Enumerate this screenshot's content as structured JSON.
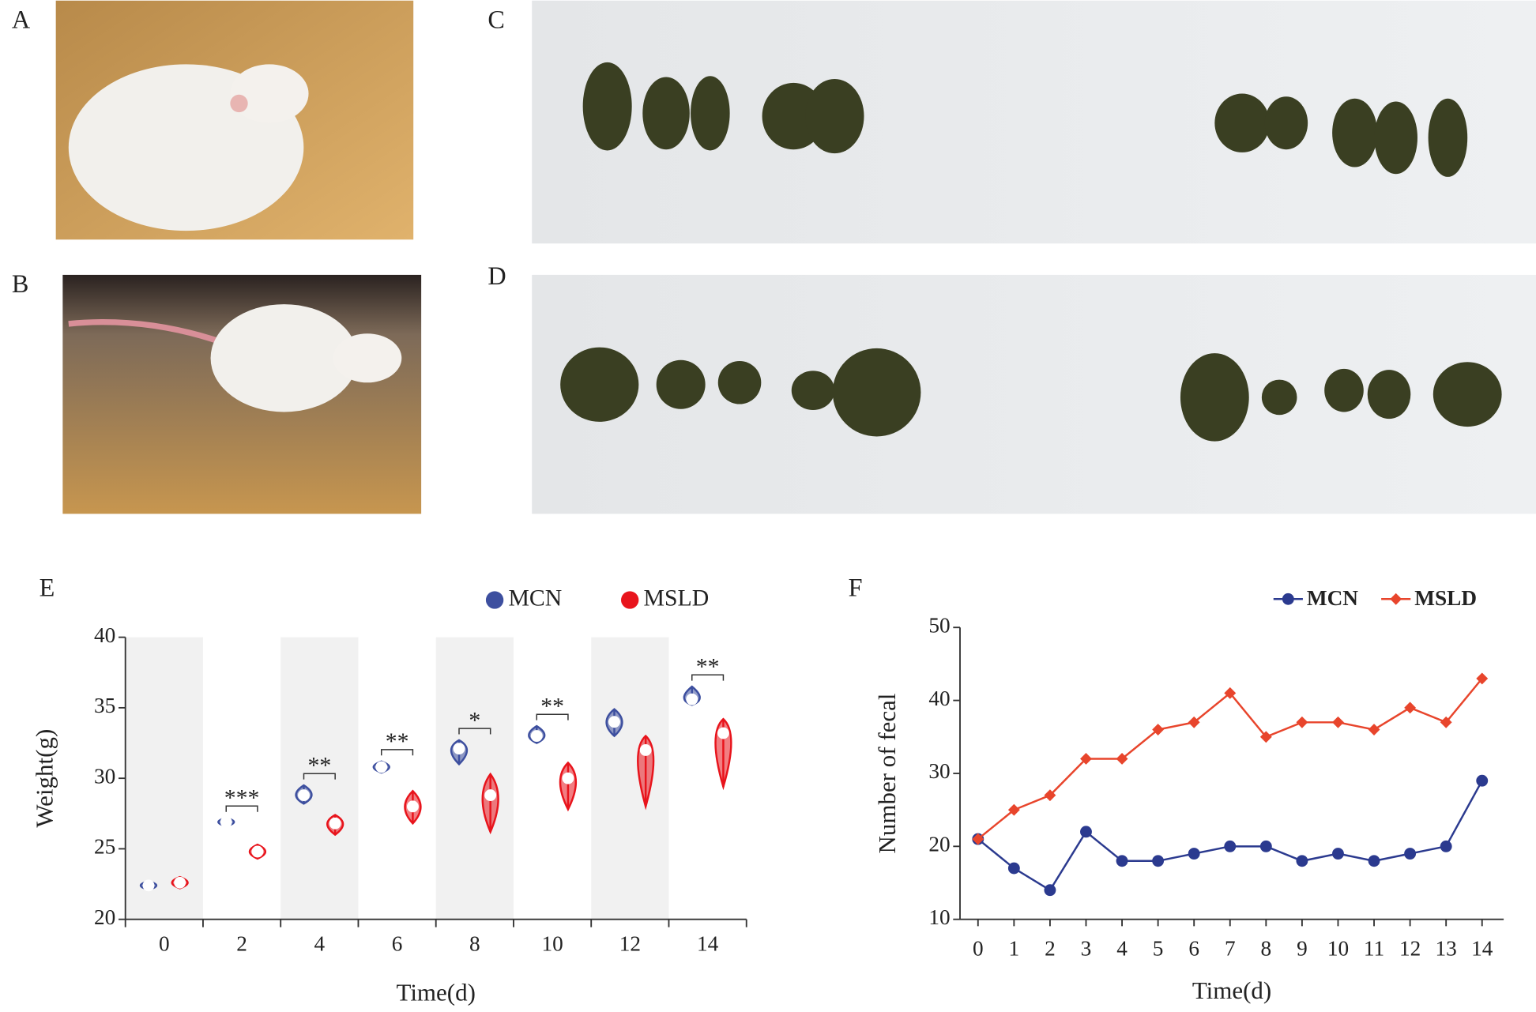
{
  "panel_labels": [
    "A",
    "B",
    "C",
    "D"
  ],
  "chart_data": [
    {
      "type": "violin",
      "panel": "E",
      "y_label": "Weight(g)",
      "x_label": "Time(d)",
      "categories": [
        "0",
        "2",
        "4",
        "6",
        "8",
        "10",
        "12",
        "14"
      ],
      "series": [
        {
          "name": "MCN",
          "color": "#3d4f9f",
          "values": [
            22.4,
            26.9,
            28.8,
            30.8,
            32.1,
            33.0,
            34.0,
            35.6
          ],
          "min": [
            22.1,
            26.6,
            28.2,
            30.4,
            31.0,
            32.5,
            33.0,
            35.2
          ],
          "max": [
            22.7,
            27.2,
            29.5,
            31.2,
            32.7,
            33.7,
            34.9,
            36.5
          ]
        },
        {
          "name": "MSLD",
          "color": "#e8141c",
          "values": [
            22.6,
            24.8,
            26.8,
            28.0,
            28.8,
            30.0,
            32.0,
            33.2
          ],
          "min": [
            22.2,
            24.3,
            26.0,
            26.8,
            26.2,
            27.8,
            28.0,
            29.4
          ],
          "max": [
            23.0,
            25.3,
            27.4,
            29.1,
            30.3,
            31.1,
            33.0,
            34.2
          ]
        }
      ],
      "significance": [
        null,
        "***",
        "**",
        "**",
        "*",
        "**",
        null,
        "**"
      ],
      "ylim": [
        20,
        40
      ],
      "yticks": [
        20,
        25,
        30,
        35,
        40
      ],
      "shaded_bands": true,
      "legend": "top"
    },
    {
      "type": "line",
      "panel": "F",
      "y_label": "Number of fecal",
      "x_label": "Time(d)",
      "x": [
        0,
        1,
        2,
        3,
        4,
        5,
        6,
        7,
        8,
        9,
        10,
        11,
        12,
        13,
        14
      ],
      "xlim": [
        -0.5,
        14.6
      ],
      "xticks": [
        0,
        1,
        2,
        3,
        4,
        5,
        6,
        7,
        8,
        9,
        10,
        11,
        12,
        13,
        14
      ],
      "ylim": [
        10,
        50
      ],
      "yticks": [
        10,
        20,
        30,
        40,
        50
      ],
      "series": [
        {
          "name": "MCN",
          "color": "#2b3a8f",
          "marker": "circle",
          "values": [
            21,
            17,
            14,
            22,
            18,
            18,
            19,
            20,
            20,
            18,
            19,
            18,
            19,
            20,
            29
          ]
        },
        {
          "name": "MSLD",
          "color": "#e8452c",
          "marker": "diamond",
          "values": [
            21,
            25,
            27,
            32,
            32,
            36,
            37,
            41,
            35,
            37,
            37,
            36,
            39,
            37,
            43
          ]
        }
      ],
      "legend": "top right"
    }
  ]
}
